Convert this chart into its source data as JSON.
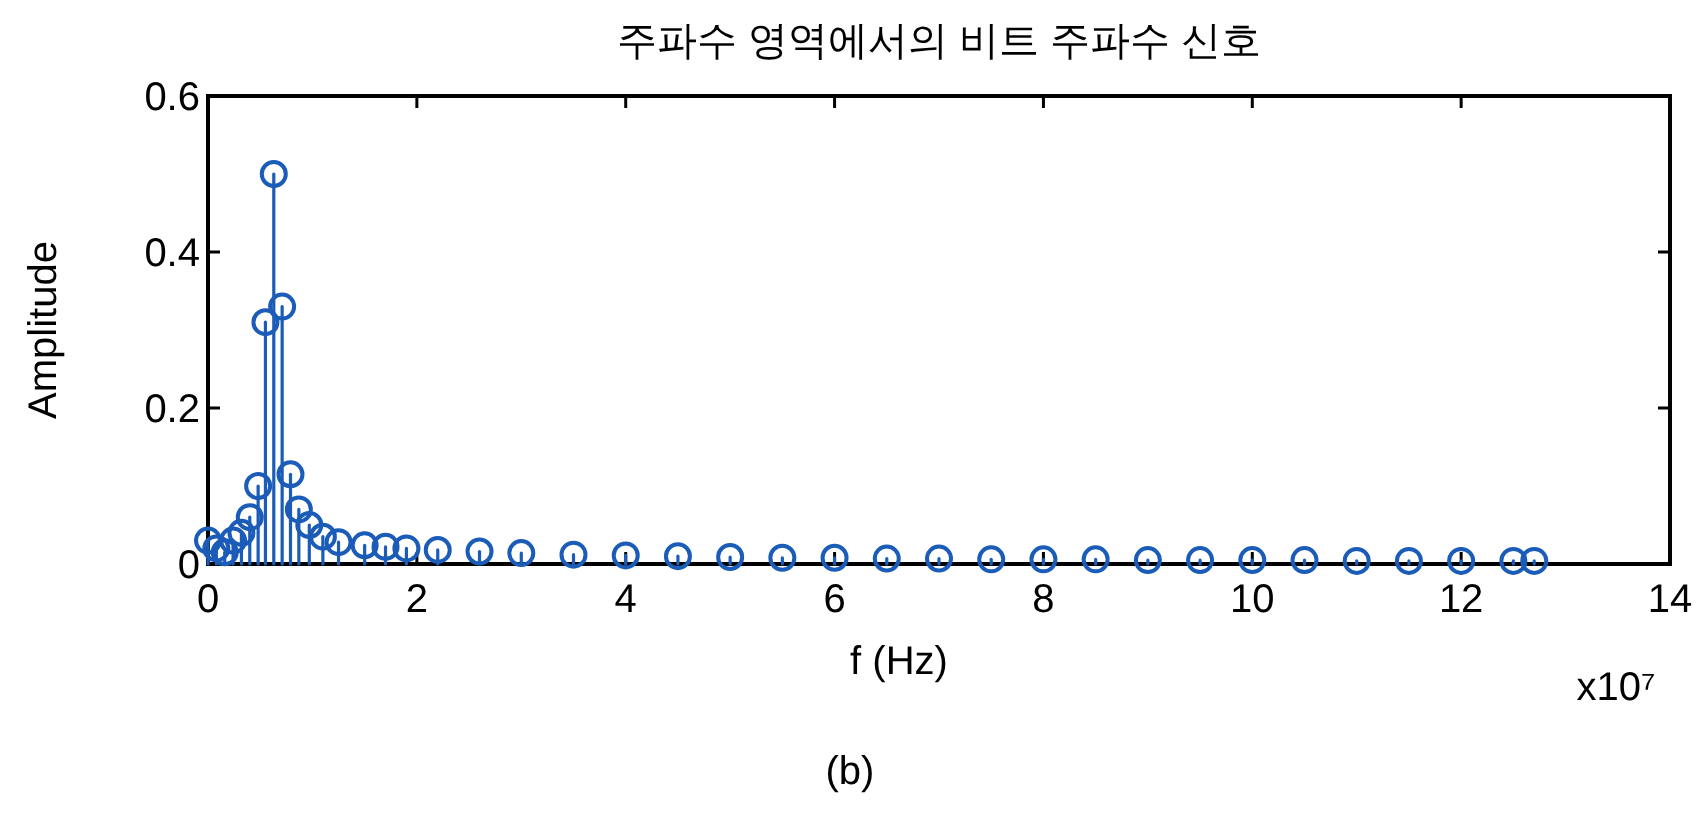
{
  "chart_data": {
    "type": "lollipop",
    "title": "주파수 영역에서의 비트 주파수 신호",
    "xlabel": "f (Hz)",
    "ylabel": "Amplitude",
    "annotations": [
      "x10⁷",
      "(b)"
    ],
    "xlim": [
      0,
      14
    ],
    "xticks": [
      0,
      2,
      4,
      6,
      8,
      10,
      12,
      14
    ],
    "ylim": [
      0,
      0.6
    ],
    "yticks": [
      0,
      0.2,
      0.4,
      0.6
    ],
    "marker": "circle",
    "series": [
      {
        "color": "#1a5cb8",
        "x": [
          0,
          0.08,
          0.16,
          0.24,
          0.32,
          0.4,
          0.48,
          0.55,
          0.63,
          0.71,
          0.79,
          0.87,
          0.97,
          1.1,
          1.25,
          1.5,
          1.7,
          1.9,
          2.2,
          2.6,
          3,
          3.5,
          4,
          4.5,
          5,
          5.5,
          6,
          6.5,
          7,
          7.5,
          8,
          8.5,
          9,
          9.5,
          10,
          10.5,
          11,
          11.5,
          12,
          12.5,
          12.7
        ],
        "values": [
          0.03,
          0.02,
          0.015,
          0.03,
          0.04,
          0.06,
          0.1,
          0.31,
          0.5,
          0.33,
          0.115,
          0.07,
          0.05,
          0.035,
          0.028,
          0.024,
          0.022,
          0.02,
          0.018,
          0.016,
          0.014,
          0.012,
          0.011,
          0.01,
          0.009,
          0.008,
          0.008,
          0.007,
          0.007,
          0.006,
          0.006,
          0.006,
          0.005,
          0.005,
          0.005,
          0.005,
          0.004,
          0.004,
          0.004,
          0.004,
          0.004
        ]
      }
    ]
  }
}
